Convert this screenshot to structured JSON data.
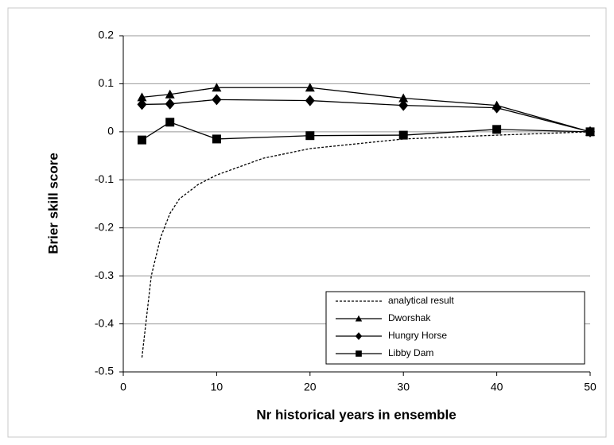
{
  "chart_data": {
    "type": "line",
    "x_label": "Nr historical years in ensemble",
    "y_label": "Brier skill score",
    "xlim": [
      0,
      50
    ],
    "xticks": [
      0,
      10,
      20,
      30,
      40,
      50
    ],
    "ylim": [
      -0.5,
      0.2
    ],
    "yticks": [
      0.2,
      0.1,
      0,
      -0.1,
      -0.2,
      -0.3,
      -0.4,
      -0.5
    ],
    "grid": true,
    "legend": "lower right",
    "series": [
      {
        "name": "analytical result",
        "color": "#000000",
        "line_style": "dashed",
        "marker": "none",
        "x": [
          2,
          3,
          4,
          5,
          6,
          8,
          10,
          15,
          20,
          30,
          40,
          50
        ],
        "values": [
          -0.47,
          -0.3,
          -0.22,
          -0.17,
          -0.14,
          -0.11,
          -0.09,
          -0.055,
          -0.035,
          -0.015,
          -0.007,
          0
        ]
      },
      {
        "name": "Dworshak",
        "color": "#000000",
        "line_style": "solid",
        "marker": "triangle",
        "x": [
          2,
          5,
          10,
          20,
          30,
          40,
          50
        ],
        "values": [
          0.072,
          0.078,
          0.092,
          0.092,
          0.07,
          0.055,
          0
        ]
      },
      {
        "name": "Hungry Horse",
        "color": "#000000",
        "line_style": "solid",
        "marker": "diamond",
        "x": [
          2,
          5,
          10,
          20,
          30,
          40,
          50
        ],
        "values": [
          0.057,
          0.058,
          0.067,
          0.065,
          0.055,
          0.05,
          0
        ]
      },
      {
        "name": "Libby Dam",
        "color": "#000000",
        "line_style": "solid",
        "marker": "square",
        "x": [
          2,
          5,
          10,
          20,
          30,
          40,
          50
        ],
        "values": [
          -0.017,
          0.02,
          -0.015,
          -0.008,
          -0.007,
          0.005,
          0
        ]
      }
    ]
  }
}
